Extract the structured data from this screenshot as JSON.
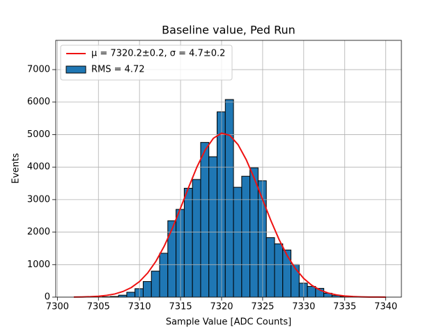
{
  "chart_data": {
    "type": "histogram",
    "title": "Baseline value, Ped Run",
    "xlabel": "Sample Value [ADC Counts]",
    "ylabel": "Events",
    "name": "RMS = 4.72",
    "color": "#1f77b4",
    "edgecolor": "#000000",
    "bins": [
      7305.45,
      7306.45,
      7307.45,
      7308.45,
      7309.45,
      7310.45,
      7311.45,
      7312.45,
      7313.45,
      7314.45,
      7315.45,
      7316.45,
      7317.45,
      7318.45,
      7319.45,
      7320.45,
      7321.45,
      7322.45,
      7323.45,
      7324.45,
      7325.45,
      7326.45,
      7327.45,
      7328.45,
      7329.45,
      7330.45,
      7331.45,
      7332.45,
      7333.45,
      7334.45,
      7335.45
    ],
    "values": [
      10,
      20,
      60,
      150,
      260,
      480,
      800,
      1350,
      2350,
      2700,
      3350,
      3620,
      4760,
      4320,
      5700,
      6080,
      3380,
      3720,
      3980,
      3580,
      1830,
      1640,
      1450,
      1000,
      430,
      330,
      270,
      120,
      50,
      20
    ],
    "fit": {
      "name": "μ = 7320.2±0.2, σ = 4.7±0.2",
      "color": "#ee1111",
      "x": [
        7302,
        7303,
        7304,
        7305,
        7306,
        7307,
        7308,
        7309,
        7310,
        7311,
        7312,
        7313,
        7314,
        7315,
        7316,
        7317,
        7318,
        7319,
        7320,
        7321,
        7322,
        7323,
        7324,
        7325,
        7326,
        7327,
        7328,
        7329,
        7330,
        7331,
        7332,
        7333,
        7334,
        7335,
        7336,
        7337,
        7338,
        7339,
        7340
      ],
      "values": [
        2.8,
        6.2,
        13.3,
        27,
        52.6,
        97.8,
        174,
        295,
        479,
        743,
        1102,
        1562,
        2115,
        2739,
        3388,
        4005,
        4526,
        4888,
        5045,
        4977,
        4693,
        4229,
        3642,
        2998,
        2358,
        1773,
        1274,
        875,
        574,
        361,
        216,
        124,
        68,
        35,
        17.7,
        8.5,
        3.9,
        1.7,
        0.7
      ]
    },
    "xlim": [
      7299.8,
      7341.9
    ],
    "ylim": [
      0,
      7900
    ],
    "xticks": [
      7300,
      7305,
      7310,
      7315,
      7320,
      7325,
      7330,
      7335,
      7340
    ],
    "yticks": [
      0,
      1000,
      2000,
      3000,
      4000,
      5000,
      6000,
      7000
    ],
    "grid": true,
    "legend": "upper left"
  }
}
